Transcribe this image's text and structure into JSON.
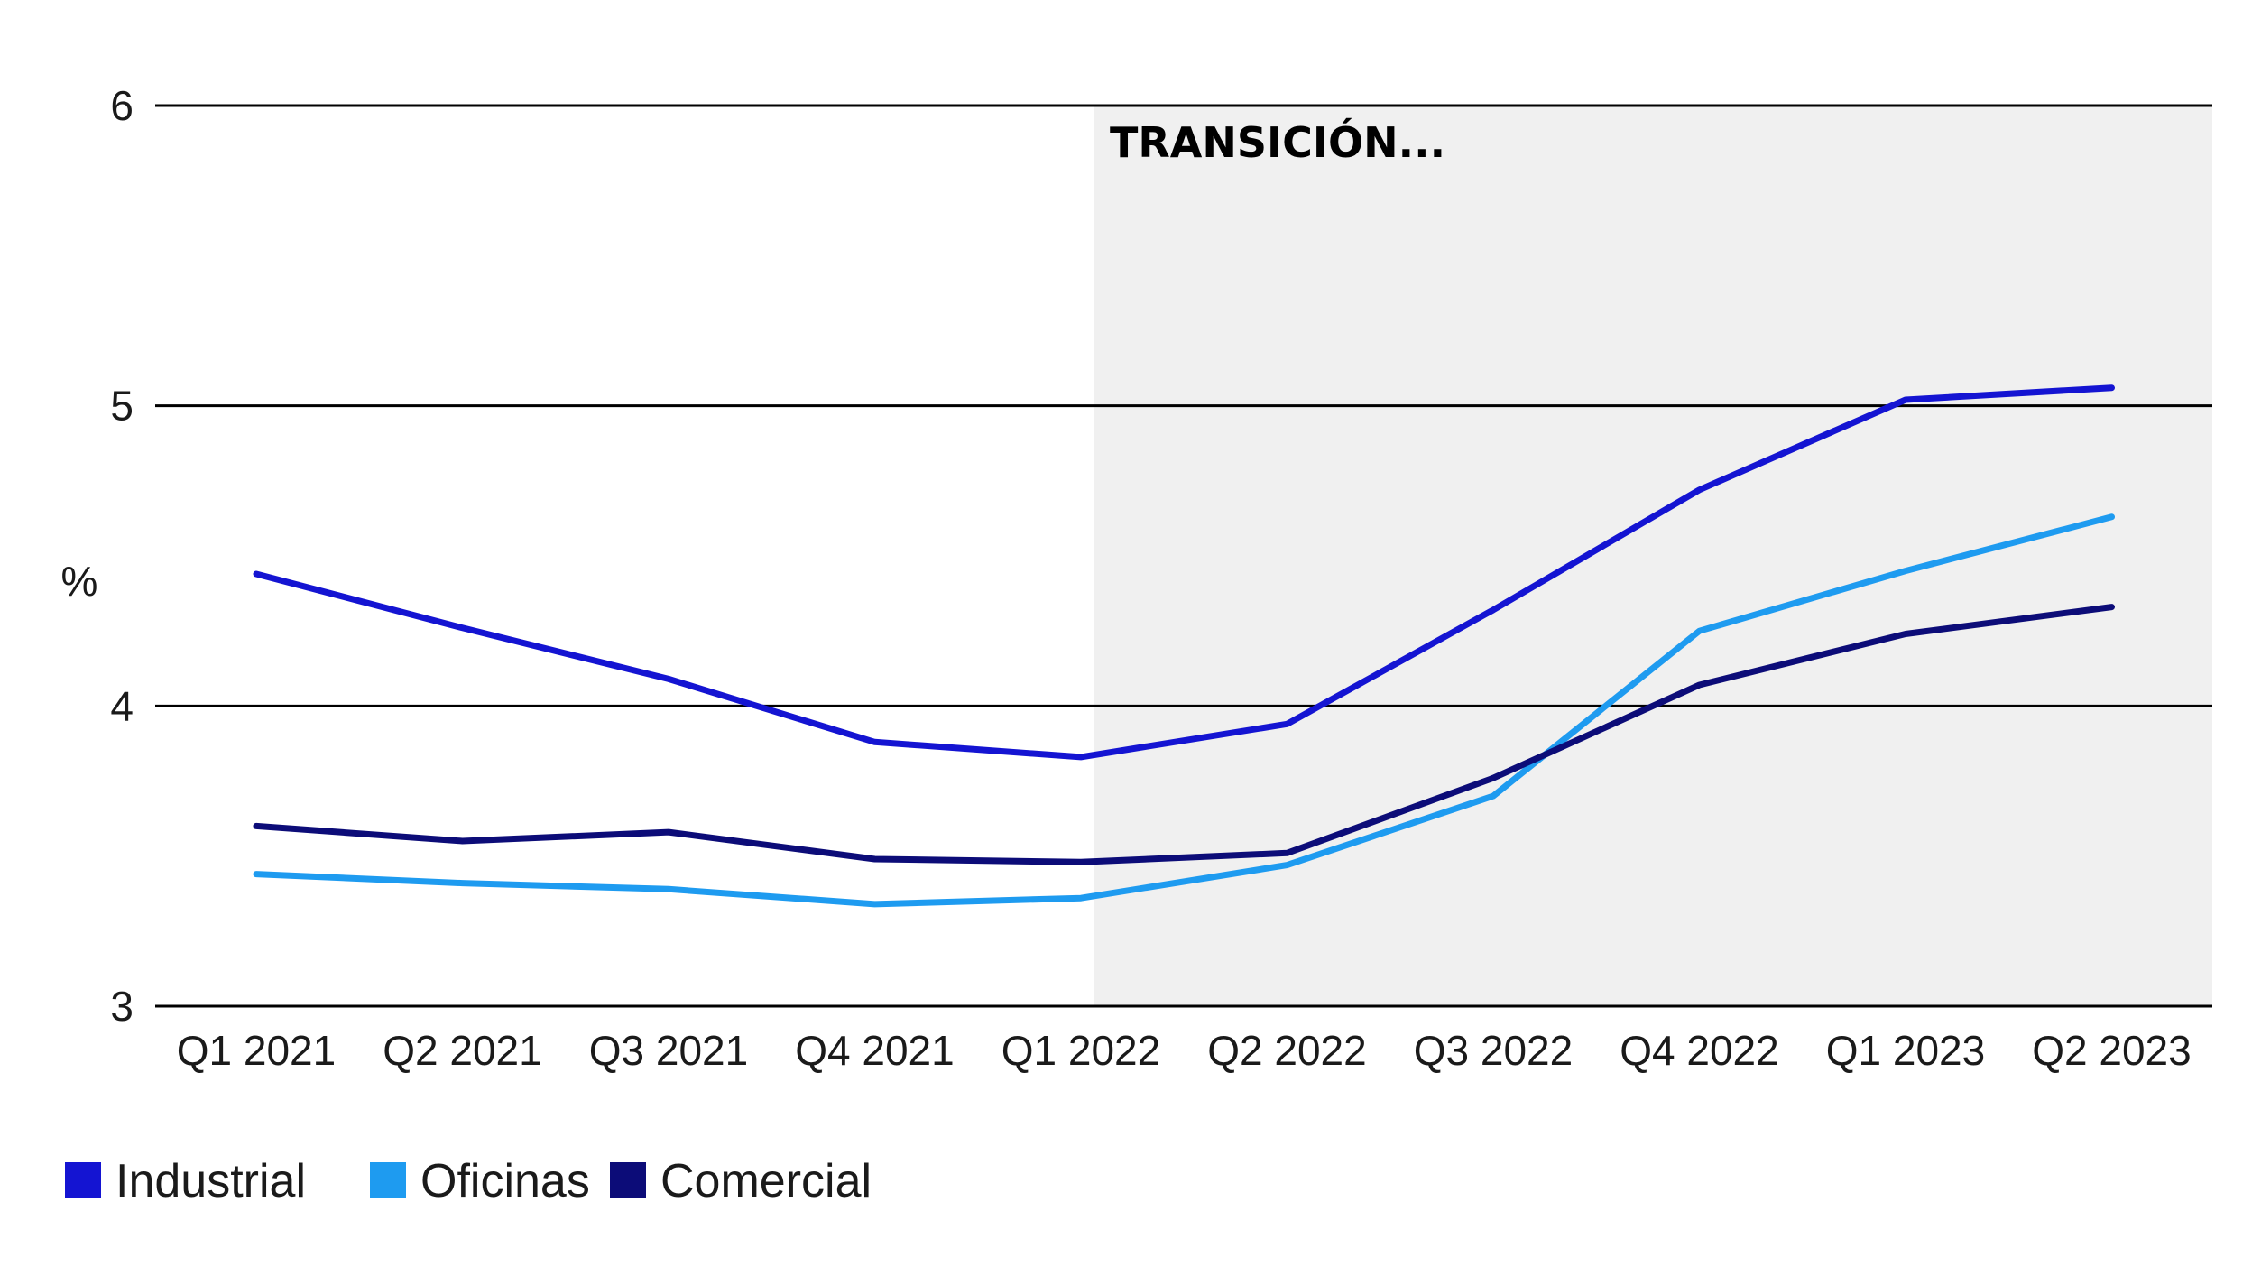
{
  "chart_data": {
    "type": "line",
    "title": "",
    "xlabel": "",
    "ylabel": "%",
    "categories": [
      "Q1 2021",
      "Q2 2021",
      "Q3 2021",
      "Q4 2021",
      "Q1 2022",
      "Q2 2022",
      "Q3 2022",
      "Q4 2022",
      "Q1 2023",
      "Q2 2023"
    ],
    "ylim": [
      3,
      6
    ],
    "yticks": [
      3,
      4,
      5,
      6
    ],
    "grid": "horizontal",
    "legend_position": "bottom-left",
    "shaded_region": {
      "from": "Q1 2022",
      "to": "Q2 2023",
      "label": "TRANSICIÓN...",
      "color": "#f0f0f0"
    },
    "series": [
      {
        "name": "Industrial",
        "color": "#1414d2",
        "values": [
          4.44,
          4.26,
          4.09,
          3.88,
          3.83,
          3.94,
          4.32,
          4.72,
          5.02,
          5.06
        ]
      },
      {
        "name": "Oficinas",
        "color": "#1e9bf0",
        "values": [
          3.44,
          3.41,
          3.39,
          3.34,
          3.36,
          3.47,
          3.7,
          4.25,
          4.45,
          4.63
        ]
      },
      {
        "name": "Comercial",
        "color": "#0c0c78",
        "values": [
          3.6,
          3.55,
          3.58,
          3.49,
          3.48,
          3.51,
          3.76,
          4.07,
          4.24,
          4.33
        ]
      }
    ]
  }
}
